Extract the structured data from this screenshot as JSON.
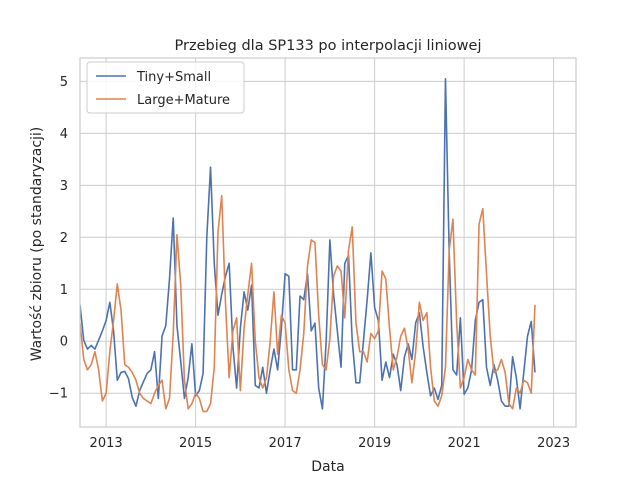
{
  "chart_data": {
    "type": "line",
    "title": "Przebieg dla SP133 po interpolacji liniowej",
    "xlabel": "Data",
    "ylabel": "Wartość zbioru (po standaryzacji)",
    "xlim": [
      "2012-06",
      "2023-07"
    ],
    "ylim": [
      -1.65,
      5.45
    ],
    "yticks": [
      -1,
      0,
      1,
      2,
      3,
      4,
      5
    ],
    "xticks": [
      "2013",
      "2015",
      "2017",
      "2019",
      "2021",
      "2023"
    ],
    "grid": true,
    "legend_position": "top-left",
    "colors": {
      "tiny_small": "#4c72b0",
      "large_mature": "#dd8452"
    },
    "series": [
      {
        "name": "Tiny+Small",
        "color": "#4c72b0",
        "points": [
          [
            "2012-06",
            0.7
          ],
          [
            "2012-07",
            0.02
          ],
          [
            "2012-08",
            -0.15
          ],
          [
            "2012-09",
            -0.08
          ],
          [
            "2012-10",
            -0.15
          ],
          [
            "2012-11",
            0.02
          ],
          [
            "2012-12",
            0.2
          ],
          [
            "2013-01",
            0.4
          ],
          [
            "2013-02",
            0.75
          ],
          [
            "2013-03",
            0.2
          ],
          [
            "2013-04",
            -0.75
          ],
          [
            "2013-05",
            -0.6
          ],
          [
            "2013-06",
            -0.58
          ],
          [
            "2013-07",
            -0.72
          ],
          [
            "2013-08",
            -1.08
          ],
          [
            "2013-09",
            -1.25
          ],
          [
            "2013-10",
            -0.95
          ],
          [
            "2013-11",
            -0.78
          ],
          [
            "2013-12",
            -0.62
          ],
          [
            "2014-01",
            -0.55
          ],
          [
            "2014-02",
            -0.2
          ],
          [
            "2014-03",
            -1.1
          ],
          [
            "2014-04",
            0.1
          ],
          [
            "2014-05",
            0.3
          ],
          [
            "2014-06",
            1.2
          ],
          [
            "2014-07",
            2.37
          ],
          [
            "2014-08",
            0.3
          ],
          [
            "2014-09",
            -0.38
          ],
          [
            "2014-10",
            -1.1
          ],
          [
            "2014-11",
            -0.7
          ],
          [
            "2014-12",
            -0.05
          ],
          [
            "2015-01",
            -1.05
          ],
          [
            "2015-02",
            -0.95
          ],
          [
            "2015-03",
            -0.62
          ],
          [
            "2015-04",
            2.0
          ],
          [
            "2015-05",
            3.35
          ],
          [
            "2015-06",
            1.5
          ],
          [
            "2015-07",
            0.5
          ],
          [
            "2015-08",
            0.9
          ],
          [
            "2015-09",
            1.25
          ],
          [
            "2015-10",
            1.5
          ],
          [
            "2015-11",
            -0.1
          ],
          [
            "2015-12",
            -0.9
          ],
          [
            "2016-01",
            0.25
          ],
          [
            "2016-02",
            0.95
          ],
          [
            "2016-03",
            0.6
          ],
          [
            "2016-04",
            1.08
          ],
          [
            "2016-05",
            -0.85
          ],
          [
            "2016-06",
            -0.9
          ],
          [
            "2016-07",
            -0.5
          ],
          [
            "2016-08",
            -1.0
          ],
          [
            "2016-09",
            -0.55
          ],
          [
            "2016-10",
            -0.15
          ],
          [
            "2016-11",
            -0.55
          ],
          [
            "2016-12",
            0.25
          ],
          [
            "2017-01",
            1.3
          ],
          [
            "2017-02",
            1.25
          ],
          [
            "2017-03",
            -0.55
          ],
          [
            "2017-04",
            -0.55
          ],
          [
            "2017-05",
            0.87
          ],
          [
            "2017-06",
            0.8
          ],
          [
            "2017-07",
            1.3
          ],
          [
            "2017-08",
            0.2
          ],
          [
            "2017-09",
            0.35
          ],
          [
            "2017-10",
            -0.9
          ],
          [
            "2017-11",
            -1.3
          ],
          [
            "2017-12",
            0.0
          ],
          [
            "2018-01",
            1.95
          ],
          [
            "2018-02",
            0.9
          ],
          [
            "2018-03",
            0.2
          ],
          [
            "2018-04",
            -0.5
          ],
          [
            "2018-05",
            1.5
          ],
          [
            "2018-06",
            1.65
          ],
          [
            "2018-07",
            0.0
          ],
          [
            "2018-08",
            -0.8
          ],
          [
            "2018-09",
            -0.8
          ],
          [
            "2018-10",
            0.0
          ],
          [
            "2018-11",
            0.8
          ],
          [
            "2018-12",
            1.7
          ],
          [
            "2019-01",
            0.65
          ],
          [
            "2019-02",
            0.4
          ],
          [
            "2019-03",
            -0.75
          ],
          [
            "2019-04",
            -0.4
          ],
          [
            "2019-05",
            -0.7
          ],
          [
            "2019-06",
            -0.25
          ],
          [
            "2019-07",
            -0.45
          ],
          [
            "2019-08",
            -0.95
          ],
          [
            "2019-09",
            -0.3
          ],
          [
            "2019-10",
            -0.05
          ],
          [
            "2019-11",
            -0.35
          ],
          [
            "2019-12",
            0.35
          ],
          [
            "2020-01",
            0.55
          ],
          [
            "2020-02",
            -0.1
          ],
          [
            "2020-03",
            -0.6
          ],
          [
            "2020-04",
            -1.05
          ],
          [
            "2020-05",
            -0.9
          ],
          [
            "2020-06",
            -1.12
          ],
          [
            "2020-07",
            -0.85
          ],
          [
            "2020-08",
            5.05
          ],
          [
            "2020-09",
            1.7
          ],
          [
            "2020-10",
            -0.55
          ],
          [
            "2020-11",
            -0.65
          ],
          [
            "2020-12",
            0.45
          ],
          [
            "2021-01",
            -1.02
          ],
          [
            "2021-02",
            -0.9
          ],
          [
            "2021-03",
            -0.55
          ],
          [
            "2021-04",
            0.4
          ],
          [
            "2021-05",
            0.75
          ],
          [
            "2021-06",
            0.8
          ],
          [
            "2021-07",
            -0.5
          ],
          [
            "2021-08",
            -0.85
          ],
          [
            "2021-09",
            -0.45
          ],
          [
            "2021-10",
            -0.75
          ],
          [
            "2021-11",
            -1.15
          ],
          [
            "2021-12",
            -1.25
          ],
          [
            "2022-01",
            -1.25
          ],
          [
            "2022-02",
            -0.3
          ],
          [
            "2022-03",
            -0.7
          ],
          [
            "2022-04",
            -1.3
          ],
          [
            "2022-05",
            -0.6
          ],
          [
            "2022-06",
            0.1
          ],
          [
            "2022-07",
            0.38
          ],
          [
            "2022-08",
            -0.6
          ]
        ]
      },
      {
        "name": "Large+Mature",
        "color": "#dd8452",
        "points": [
          [
            "2012-06",
            0.35
          ],
          [
            "2012-07",
            -0.35
          ],
          [
            "2012-08",
            -0.55
          ],
          [
            "2012-09",
            -0.45
          ],
          [
            "2012-10",
            -0.2
          ],
          [
            "2012-11",
            -0.55
          ],
          [
            "2012-12",
            -1.15
          ],
          [
            "2013-01",
            -1.0
          ],
          [
            "2013-02",
            -0.2
          ],
          [
            "2013-03",
            0.4
          ],
          [
            "2013-04",
            1.1
          ],
          [
            "2013-05",
            0.6
          ],
          [
            "2013-06",
            -0.45
          ],
          [
            "2013-07",
            -0.5
          ],
          [
            "2013-08",
            -0.6
          ],
          [
            "2013-09",
            -0.75
          ],
          [
            "2013-10",
            -1.0
          ],
          [
            "2013-11",
            -1.1
          ],
          [
            "2013-12",
            -1.15
          ],
          [
            "2014-01",
            -1.2
          ],
          [
            "2014-02",
            -1.0
          ],
          [
            "2014-03",
            -0.85
          ],
          [
            "2014-04",
            -0.75
          ],
          [
            "2014-05",
            -1.3
          ],
          [
            "2014-06",
            -1.1
          ],
          [
            "2014-07",
            0.15
          ],
          [
            "2014-08",
            2.05
          ],
          [
            "2014-09",
            1.1
          ],
          [
            "2014-10",
            -0.75
          ],
          [
            "2014-11",
            -1.3
          ],
          [
            "2014-12",
            -1.2
          ],
          [
            "2015-01",
            -1.0
          ],
          [
            "2015-02",
            -1.1
          ],
          [
            "2015-03",
            -1.35
          ],
          [
            "2015-04",
            -1.35
          ],
          [
            "2015-05",
            -1.2
          ],
          [
            "2015-06",
            -0.5
          ],
          [
            "2015-07",
            2.1
          ],
          [
            "2015-08",
            2.8
          ],
          [
            "2015-09",
            0.75
          ],
          [
            "2015-10",
            -0.7
          ],
          [
            "2015-11",
            0.2
          ],
          [
            "2015-12",
            0.45
          ],
          [
            "2016-01",
            -0.95
          ],
          [
            "2016-02",
            0.25
          ],
          [
            "2016-03",
            0.9
          ],
          [
            "2016-04",
            1.5
          ],
          [
            "2016-05",
            0.0
          ],
          [
            "2016-06",
            -0.7
          ],
          [
            "2016-07",
            -0.9
          ],
          [
            "2016-08",
            -0.7
          ],
          [
            "2016-09",
            0.0
          ],
          [
            "2016-10",
            0.95
          ],
          [
            "2016-11",
            -0.25
          ],
          [
            "2016-12",
            0.5
          ],
          [
            "2017-01",
            0.35
          ],
          [
            "2017-02",
            -0.55
          ],
          [
            "2017-03",
            -0.95
          ],
          [
            "2017-04",
            -1.0
          ],
          [
            "2017-05",
            -0.55
          ],
          [
            "2017-06",
            0.15
          ],
          [
            "2017-07",
            1.45
          ],
          [
            "2017-08",
            1.95
          ],
          [
            "2017-09",
            1.9
          ],
          [
            "2017-10",
            0.5
          ],
          [
            "2017-11",
            -0.45
          ],
          [
            "2017-12",
            -0.55
          ],
          [
            "2018-01",
            0.05
          ],
          [
            "2018-02",
            1.25
          ],
          [
            "2018-03",
            1.45
          ],
          [
            "2018-04",
            1.35
          ],
          [
            "2018-05",
            0.45
          ],
          [
            "2018-06",
            1.75
          ],
          [
            "2018-07",
            2.2
          ],
          [
            "2018-08",
            0.35
          ],
          [
            "2018-09",
            -0.2
          ],
          [
            "2018-10",
            -0.2
          ],
          [
            "2018-11",
            -0.4
          ],
          [
            "2018-12",
            0.15
          ],
          [
            "2019-01",
            0.05
          ],
          [
            "2019-02",
            0.2
          ],
          [
            "2019-03",
            1.35
          ],
          [
            "2019-04",
            1.2
          ],
          [
            "2019-05",
            0.25
          ],
          [
            "2019-06",
            -0.55
          ],
          [
            "2019-07",
            -0.3
          ],
          [
            "2019-08",
            0.1
          ],
          [
            "2019-09",
            0.25
          ],
          [
            "2019-10",
            -0.15
          ],
          [
            "2019-11",
            -0.8
          ],
          [
            "2019-12",
            -0.2
          ],
          [
            "2020-01",
            0.75
          ],
          [
            "2020-02",
            0.4
          ],
          [
            "2020-03",
            0.55
          ],
          [
            "2020-04",
            -0.5
          ],
          [
            "2020-05",
            -1.15
          ],
          [
            "2020-06",
            -1.25
          ],
          [
            "2020-07",
            -1.05
          ],
          [
            "2020-08",
            -0.5
          ],
          [
            "2020-09",
            1.75
          ],
          [
            "2020-10",
            2.35
          ],
          [
            "2020-11",
            0.35
          ],
          [
            "2020-12",
            -0.9
          ],
          [
            "2021-01",
            -0.7
          ],
          [
            "2021-02",
            -0.35
          ],
          [
            "2021-03",
            -0.55
          ],
          [
            "2021-04",
            -0.65
          ],
          [
            "2021-05",
            2.25
          ],
          [
            "2021-06",
            2.55
          ],
          [
            "2021-07",
            1.3
          ],
          [
            "2021-08",
            0.1
          ],
          [
            "2021-09",
            -0.6
          ],
          [
            "2021-10",
            -0.55
          ],
          [
            "2021-11",
            -0.35
          ],
          [
            "2021-12",
            -0.6
          ],
          [
            "2022-01",
            -1.2
          ],
          [
            "2022-02",
            -1.3
          ],
          [
            "2022-03",
            -0.9
          ],
          [
            "2022-04",
            -1.0
          ],
          [
            "2022-05",
            -0.75
          ],
          [
            "2022-06",
            -0.8
          ],
          [
            "2022-07",
            -1.0
          ],
          [
            "2022-08",
            0.7
          ]
        ]
      }
    ]
  }
}
